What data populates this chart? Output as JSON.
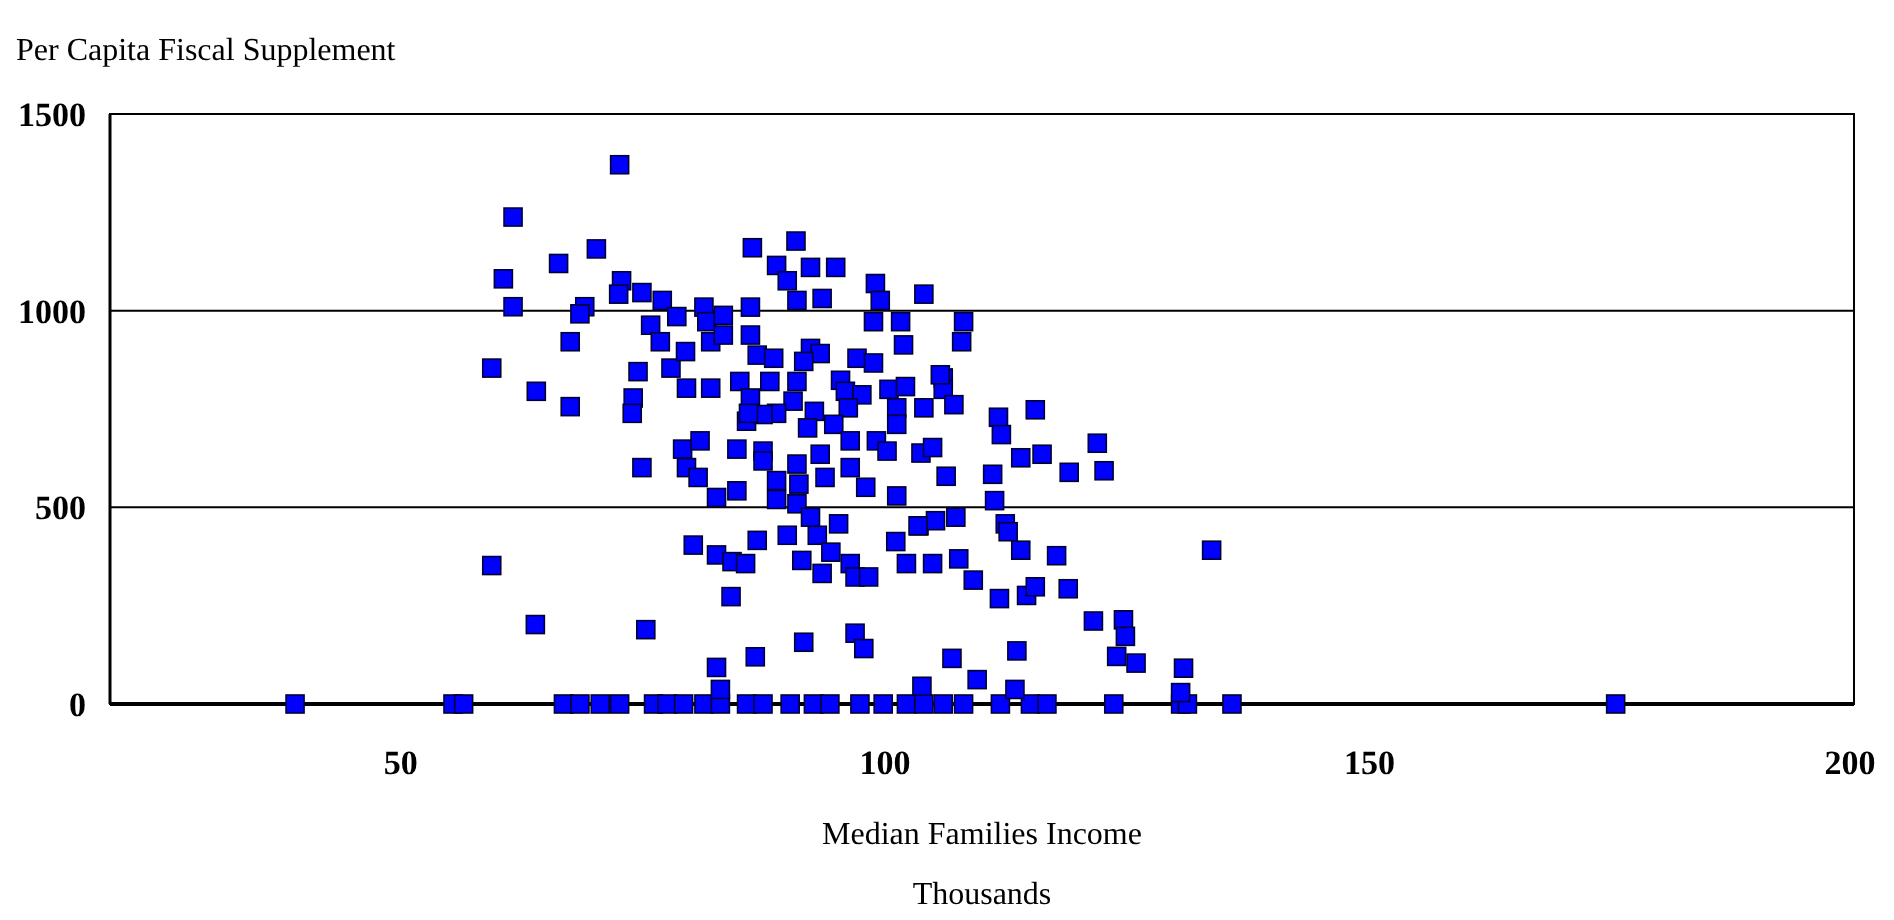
{
  "chart_data": {
    "type": "scatter",
    "ylabel": "Per Capita Fiscal Supplement",
    "xlabel": "Median Families Income",
    "annotations": [
      "Thousands"
    ],
    "xlim": [
      20,
      200
    ],
    "xticks": [
      50,
      100,
      150,
      200
    ],
    "ylim": [
      0,
      1500
    ],
    "yticks": [
      0,
      500,
      1000,
      1500
    ],
    "grid": "y",
    "marker": "square",
    "series": [
      {
        "color": "#0000ff",
        "x": [
          39.1,
          55.4,
          56.5,
          66.8,
          68.5,
          70.6,
          72.6,
          76.1,
          77.5,
          79.2,
          81.3,
          83.0,
          85.7,
          87.4,
          90.2,
          92.6,
          94.3,
          97.4,
          99.8,
          102.2,
          104.0,
          106.0,
          108.1,
          111.9,
          115.0,
          116.7,
          123.6,
          130.5,
          131.2,
          135.8,
          175.4,
          72.6,
          61.6,
          70.2,
          66.3,
          60.6,
          61.6,
          69.0,
          68.5,
          72.8,
          72.5,
          74.9,
          77.0,
          78.5,
          75.8,
          76.8,
          77.9,
          79.5,
          82.0,
          79.4,
          81.3,
          81.6,
          83.3,
          82.0,
          83.3,
          86.1,
          86.3,
          86.1,
          86.8,
          88.5,
          85.0,
          86.1,
          88.1,
          85.7,
          88.8,
          89.9,
          90.8,
          90.9,
          92.3,
          93.5,
          94.9,
          92.3,
          93.3,
          91.6,
          90.9,
          90.5,
          95.4,
          97.1,
          98.8,
          99.0,
          99.5,
          98.8,
          101.6,
          101.9,
          104.0,
          108.1,
          107.9,
          95.9,
          97.6,
          100.4,
          102.1,
          104.0,
          106.0,
          106.0,
          107.1,
          101.2,
          101.2,
          92.7,
          96.2,
          92.0,
          88.8,
          87.4,
          85.9,
          74.0,
          73.9,
          74.5,
          64.0,
          67.5,
          67.5,
          59.4,
          74.9,
          79.1,
          80.9,
          79.5,
          80.7,
          82.6,
          84.7,
          84.7,
          87.4,
          87.4,
          88.8,
          88.8,
          90.9,
          91.1,
          90.9,
          93.3,
          93.8,
          94.7,
          96.4,
          96.4,
          98.0,
          99.1,
          100.2,
          101.2,
          103.7,
          104.9,
          106.3,
          59.4,
          63.9,
          75.3,
          80.2,
          82.6,
          84.2,
          85.6,
          86.8,
          84.1,
          89.9,
          91.4,
          92.3,
          93.0,
          93.5,
          94.4,
          95.2,
          96.4,
          96.9,
          98.3,
          101.1,
          102.2,
          103.5,
          104.9,
          105.2,
          107.3,
          107.6,
          109.1,
          82.6,
          83.0,
          86.6,
          91.6,
          96.9,
          97.8,
          103.8,
          106.9,
          109.5,
          105.7,
          115.5,
          111.7,
          112.0,
          114.0,
          116.2,
          119.0,
          121.9,
          122.6,
          111.1,
          111.3,
          103.4,
          112.4,
          112.7,
          114.0,
          117.7,
          133.7,
          111.8,
          114.6,
          115.5,
          118.9,
          121.5,
          124.6,
          124.8,
          123.9,
          125.9,
          130.8,
          113.6,
          113.4,
          130.5
        ],
        "values": [
          0,
          0,
          0,
          0,
          0,
          0,
          0,
          0,
          0,
          0,
          0,
          0,
          0,
          0,
          0,
          0,
          0,
          0,
          0,
          0,
          0,
          0,
          0,
          0,
          0,
          0,
          0,
          0,
          0,
          0,
          0,
          1371,
          1238,
          1157,
          1120,
          1081,
          1010,
          1010,
          992,
          1076,
          1042,
          1046,
          1026,
          985,
          963,
          921,
          854,
          803,
          803,
          896,
          1009,
          972,
          988,
          921,
          938,
          1009,
          1160,
          938,
          887,
          879,
          820,
          778,
          820,
          719,
          1115,
          1076,
          1177,
          1026,
          1110,
          1031,
          1110,
          904,
          891,
          871,
          820,
          770,
          823,
          879,
          867,
          1069,
          1026,
          972,
          972,
          913,
          1042,
          972,
          921,
          795,
          786,
          800,
          807,
          753,
          829,
          800,
          761,
          753,
          711,
          744,
          753,
          702,
          739,
          736,
          739,
          778,
          739,
          845,
          795,
          756,
          921,
          854,
          601,
          648,
          669,
          601,
          576,
          525,
          542,
          648,
          643,
          618,
          568,
          520,
          610,
          559,
          509,
          635,
          576,
          711,
          669,
          601,
          551,
          669,
          643,
          529,
          638,
          652,
          579,
          352,
          202,
          189,
          404,
          379,
          362,
          357,
          416,
          273,
          429,
          365,
          475,
          429,
          332,
          386,
          458,
          357,
          323,
          323,
          413,
          357,
          453,
          357,
          466,
          475,
          369,
          315,
          93,
          37,
          120,
          157,
          180,
          141,
          45,
          116,
          62,
          837,
          748,
          729,
          685,
          626,
          635,
          589,
          663,
          593,
          584,
          517,
          453,
          458,
          438,
          391,
          377,
          391,
          268,
          276,
          298,
          293,
          211,
          214,
          172,
          121,
          104,
          91,
          135,
          37,
          29
        ]
      }
    ]
  }
}
